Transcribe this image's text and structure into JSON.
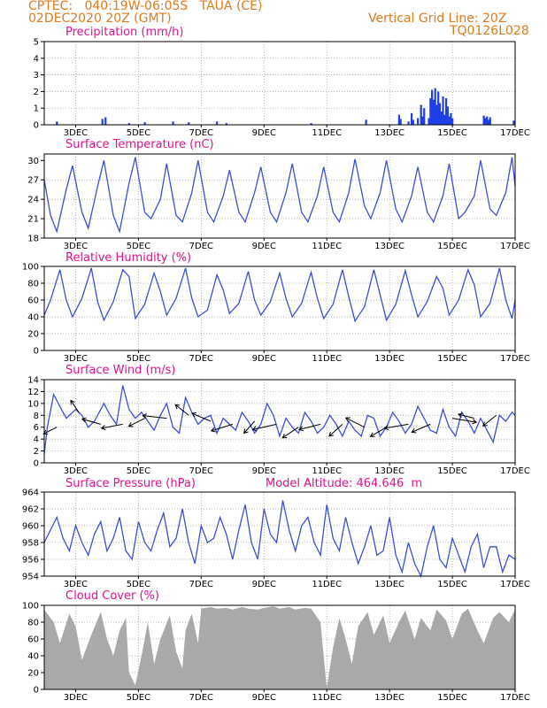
{
  "header": {
    "line1": "CPTEC:   040:19W-06:05S   TAUA (CE)",
    "line2": "02DEC2020 20Z (GMT)",
    "grid_note": "Vertical Grid Line: 20Z",
    "code": "TQ0126L028"
  },
  "x_ticks": [
    "3DEC",
    "5DEC",
    "7DEC",
    "9DEC",
    "11DEC",
    "13DEC",
    "15DEC",
    "17DEC"
  ],
  "colors": {
    "line": "#3b4fd8",
    "bar": "#1f3fe6",
    "cloud": "#a9a9a9",
    "title": "#e0128c",
    "header": "#e07a1c"
  },
  "chart_data": [
    {
      "type": "bar",
      "title": "Precipitation (mm/h)",
      "ylim": [
        0,
        5
      ],
      "yticks": [
        0,
        1,
        2,
        3,
        4,
        5
      ],
      "grid": true,
      "x_range_days": [
        2.0,
        17.0
      ],
      "series": [
        {
          "x_days": [
            2.4,
            3.85,
            3.95,
            4.7,
            5.2,
            6.1,
            6.6,
            7.5,
            7.8,
            10.5,
            12.25,
            13.3,
            13.35,
            13.6,
            13.7,
            13.75,
            13.9,
            14.0,
            14.05,
            14.1,
            14.25,
            14.3,
            14.35,
            14.4,
            14.45,
            14.5,
            14.55,
            14.6,
            14.65,
            14.7,
            14.75,
            14.8,
            14.85,
            14.9,
            14.95,
            15.0,
            16.0,
            16.05,
            16.1,
            16.15,
            16.2,
            16.95
          ],
          "values": [
            0.2,
            0.35,
            0.45,
            0.1,
            0.15,
            0.2,
            0.15,
            0.2,
            0.1,
            0.1,
            0.3,
            0.6,
            0.35,
            0.2,
            0.7,
            0.3,
            0.4,
            1.2,
            0.5,
            1.0,
            0.4,
            1.6,
            2.1,
            1.5,
            2.2,
            1.2,
            2.0,
            1.3,
            0.8,
            1.7,
            0.6,
            1.6,
            1.1,
            0.5,
            0.7,
            0.4,
            0.55,
            0.4,
            0.5,
            0.3,
            0.45,
            0.25
          ]
        }
      ]
    },
    {
      "type": "line",
      "title": "Surface Temperature (nC)",
      "ylim": [
        18,
        31
      ],
      "yticks": [
        18,
        21,
        24,
        27,
        30
      ],
      "grid": true,
      "series": [
        {
          "x_days": [
            2.0,
            2.2,
            2.4,
            2.7,
            2.9,
            3.2,
            3.4,
            3.7,
            3.9,
            4.2,
            4.4,
            4.7,
            4.9,
            5.2,
            5.4,
            5.7,
            5.9,
            6.2,
            6.4,
            6.7,
            6.9,
            7.2,
            7.4,
            7.7,
            7.9,
            8.2,
            8.4,
            8.7,
            8.9,
            9.2,
            9.4,
            9.7,
            9.9,
            10.2,
            10.4,
            10.7,
            10.9,
            11.2,
            11.4,
            11.7,
            11.9,
            12.2,
            12.4,
            12.7,
            12.9,
            13.2,
            13.4,
            13.7,
            13.9,
            14.2,
            14.4,
            14.7,
            14.9,
            15.2,
            15.4,
            15.7,
            15.9,
            16.2,
            16.4,
            16.7,
            16.9,
            17.0
          ],
          "values": [
            27.0,
            21.5,
            19.0,
            25.5,
            29.2,
            22.0,
            19.5,
            26.0,
            30.0,
            21.5,
            19.0,
            26.5,
            30.5,
            22.0,
            21.0,
            24.0,
            29.5,
            21.5,
            20.5,
            25.0,
            30.0,
            22.0,
            20.5,
            24.5,
            28.5,
            22.0,
            20.5,
            25.0,
            29.0,
            22.0,
            20.5,
            25.0,
            29.5,
            22.0,
            20.5,
            24.5,
            29.0,
            22.0,
            20.5,
            25.0,
            30.2,
            23.0,
            21.0,
            25.0,
            30.0,
            22.5,
            20.5,
            24.5,
            29.0,
            22.0,
            20.5,
            24.5,
            29.5,
            21.0,
            22.0,
            24.5,
            30.0,
            22.5,
            21.5,
            25.0,
            30.5,
            26.0
          ]
        }
      ]
    },
    {
      "type": "line",
      "title": "Relative Humidity (%)",
      "ylim": [
        0,
        100
      ],
      "yticks": [
        0,
        20,
        40,
        60,
        80,
        100
      ],
      "grid": true,
      "series": [
        {
          "x_days": [
            2.0,
            2.2,
            2.5,
            2.7,
            2.9,
            3.2,
            3.5,
            3.7,
            3.9,
            4.2,
            4.5,
            4.7,
            4.9,
            5.2,
            5.5,
            5.7,
            5.9,
            6.2,
            6.5,
            6.7,
            6.9,
            7.2,
            7.5,
            7.7,
            7.9,
            8.2,
            8.5,
            8.7,
            8.9,
            9.2,
            9.5,
            9.7,
            9.9,
            10.2,
            10.5,
            10.7,
            10.9,
            11.2,
            11.5,
            11.7,
            11.9,
            12.2,
            12.5,
            12.7,
            12.9,
            13.2,
            13.5,
            13.7,
            13.9,
            14.2,
            14.5,
            14.7,
            14.9,
            15.2,
            15.5,
            15.7,
            15.9,
            16.2,
            16.5,
            16.7,
            16.9,
            17.0
          ],
          "values": [
            42,
            60,
            96,
            60,
            40,
            62,
            98,
            58,
            36,
            58,
            96,
            88,
            38,
            55,
            92,
            70,
            42,
            62,
            98,
            62,
            40,
            48,
            90,
            72,
            44,
            56,
            94,
            60,
            42,
            58,
            92,
            62,
            40,
            56,
            93,
            62,
            38,
            55,
            96,
            64,
            35,
            52,
            96,
            66,
            36,
            55,
            95,
            66,
            40,
            58,
            88,
            74,
            42,
            60,
            96,
            78,
            40,
            56,
            98,
            60,
            38,
            60
          ]
        }
      ]
    },
    {
      "type": "line",
      "title": "Surface Wind (m/s)",
      "ylim": [
        0,
        14
      ],
      "yticks": [
        0,
        2,
        4,
        6,
        8,
        10,
        12,
        14
      ],
      "grid": true,
      "series": [
        {
          "x_days": [
            2.0,
            2.1,
            2.3,
            2.5,
            2.7,
            3.0,
            3.2,
            3.4,
            3.6,
            3.9,
            4.1,
            4.3,
            4.5,
            4.7,
            4.9,
            5.1,
            5.3,
            5.5,
            5.7,
            5.9,
            6.1,
            6.3,
            6.5,
            6.7,
            6.9,
            7.1,
            7.3,
            7.5,
            7.7,
            7.9,
            8.1,
            8.3,
            8.5,
            8.7,
            8.9,
            9.1,
            9.3,
            9.5,
            9.7,
            9.9,
            10.1,
            10.3,
            10.5,
            10.7,
            10.9,
            11.1,
            11.3,
            11.5,
            11.7,
            11.9,
            12.1,
            12.3,
            12.5,
            12.7,
            12.9,
            13.1,
            13.3,
            13.5,
            13.7,
            13.9,
            14.1,
            14.3,
            14.5,
            14.7,
            14.9,
            15.1,
            15.3,
            15.5,
            15.7,
            15.9,
            16.1,
            16.3,
            16.5,
            16.7,
            16.9,
            17.0
          ],
          "values": [
            1.5,
            6.0,
            11.5,
            9.5,
            7.5,
            9.0,
            8.0,
            6.0,
            7.0,
            10.0,
            8.0,
            6.5,
            13.0,
            9.0,
            7.5,
            8.5,
            7.0,
            5.5,
            8.0,
            10.0,
            6.0,
            5.0,
            11.0,
            8.5,
            6.5,
            7.5,
            8.0,
            5.0,
            7.5,
            6.5,
            5.5,
            8.5,
            7.0,
            5.0,
            6.5,
            10.0,
            8.0,
            4.5,
            7.5,
            6.0,
            5.0,
            8.5,
            7.0,
            5.0,
            6.0,
            8.0,
            6.5,
            4.5,
            7.0,
            5.5,
            4.5,
            8.0,
            7.5,
            4.5,
            6.0,
            8.5,
            7.0,
            5.0,
            6.5,
            9.5,
            7.5,
            5.5,
            5.0,
            9.0,
            6.0,
            4.5,
            8.5,
            7.0,
            5.0,
            7.5,
            5.5,
            3.5,
            8.0,
            7.0,
            8.5,
            8.0
          ]
        }
      ],
      "vectors": [
        {
          "x_day": 2.4,
          "speed": 6.0,
          "dx": -0.5,
          "dy": 0.5
        },
        {
          "x_day": 3.1,
          "speed": 8.5,
          "dx": -0.3,
          "dy": -0.9
        },
        {
          "x_day": 3.8,
          "speed": 6.5,
          "dx": -0.7,
          "dy": -0.4
        },
        {
          "x_day": 4.5,
          "speed": 6.5,
          "dx": -0.8,
          "dy": 0.3
        },
        {
          "x_day": 5.2,
          "speed": 7.5,
          "dx": -0.6,
          "dy": 0.6
        },
        {
          "x_day": 5.9,
          "speed": 7.5,
          "dx": -0.9,
          "dy": -0.2
        },
        {
          "x_day": 6.6,
          "speed": 8.0,
          "dx": -0.5,
          "dy": -0.8
        },
        {
          "x_day": 7.3,
          "speed": 7.0,
          "dx": -0.7,
          "dy": -0.6
        },
        {
          "x_day": 8.0,
          "speed": 6.5,
          "dx": -0.8,
          "dy": 0.5
        },
        {
          "x_day": 8.7,
          "speed": 7.0,
          "dx": -0.4,
          "dy": 0.9
        },
        {
          "x_day": 9.4,
          "speed": 6.5,
          "dx": -0.9,
          "dy": 0.4
        },
        {
          "x_day": 10.1,
          "speed": 6.0,
          "dx": -0.6,
          "dy": 0.8
        },
        {
          "x_day": 10.8,
          "speed": 6.5,
          "dx": -0.8,
          "dy": 0.4
        },
        {
          "x_day": 11.5,
          "speed": 6.5,
          "dx": -0.5,
          "dy": 0.9
        },
        {
          "x_day": 12.2,
          "speed": 6.0,
          "dx": -0.7,
          "dy": -0.7
        },
        {
          "x_day": 12.9,
          "speed": 6.0,
          "dx": -0.6,
          "dy": 0.7
        },
        {
          "x_day": 13.6,
          "speed": 6.5,
          "dx": -0.9,
          "dy": 0.3
        },
        {
          "x_day": 14.3,
          "speed": 6.5,
          "dx": -0.7,
          "dy": 0.6
        },
        {
          "x_day": 15.0,
          "speed": 7.5,
          "dx": 0.9,
          "dy": 0.3
        },
        {
          "x_day": 15.7,
          "speed": 7.5,
          "dx": -0.6,
          "dy": -0.3
        },
        {
          "x_day": 16.4,
          "speed": 8.0,
          "dx": -0.5,
          "dy": 0.8
        }
      ]
    },
    {
      "type": "line",
      "title": "Surface Pressure (hPa)",
      "annotation": "Model Altitude: 464.646  m",
      "ylim": [
        954,
        964
      ],
      "yticks": [
        954,
        956,
        958,
        960,
        962,
        964
      ],
      "grid": true,
      "series": [
        {
          "x_days": [
            2.0,
            2.2,
            2.4,
            2.6,
            2.8,
            3.0,
            3.2,
            3.4,
            3.6,
            3.8,
            4.0,
            4.2,
            4.4,
            4.6,
            4.8,
            5.0,
            5.2,
            5.4,
            5.6,
            5.8,
            6.0,
            6.2,
            6.4,
            6.6,
            6.8,
            7.0,
            7.2,
            7.4,
            7.6,
            7.8,
            8.0,
            8.2,
            8.4,
            8.6,
            8.8,
            9.0,
            9.2,
            9.4,
            9.6,
            9.8,
            10.0,
            10.2,
            10.4,
            10.6,
            10.8,
            11.0,
            11.2,
            11.4,
            11.6,
            11.8,
            12.0,
            12.2,
            12.4,
            12.6,
            12.8,
            13.0,
            13.2,
            13.4,
            13.6,
            13.8,
            14.0,
            14.2,
            14.4,
            14.6,
            14.8,
            15.0,
            15.2,
            15.4,
            15.6,
            15.8,
            16.0,
            16.2,
            16.4,
            16.6,
            16.8,
            17.0
          ],
          "values": [
            958.0,
            959.5,
            961.0,
            958.5,
            957.0,
            960.0,
            958.0,
            956.5,
            959.0,
            960.5,
            957.0,
            958.5,
            961.0,
            957.0,
            956.0,
            960.5,
            958.0,
            957.0,
            959.5,
            961.5,
            957.5,
            958.5,
            962.0,
            958.0,
            955.5,
            960.0,
            958.0,
            958.5,
            961.0,
            959.0,
            956.0,
            959.5,
            962.5,
            958.0,
            956.0,
            962.0,
            959.0,
            958.0,
            963.0,
            959.5,
            957.0,
            960.0,
            961.0,
            958.0,
            956.5,
            962.5,
            958.5,
            957.0,
            961.0,
            958.0,
            955.5,
            957.5,
            960.0,
            956.5,
            957.0,
            961.0,
            956.5,
            954.5,
            958.0,
            955.5,
            954.0,
            957.5,
            960.0,
            956.0,
            955.0,
            958.5,
            956.5,
            954.5,
            957.5,
            959.0,
            955.0,
            957.5,
            957.5,
            954.5,
            956.5,
            956.0
          ]
        }
      ]
    },
    {
      "type": "area",
      "title": "Cloud Cover (%)",
      "ylim": [
        0,
        100
      ],
      "yticks": [
        0,
        20,
        40,
        60,
        80,
        100
      ],
      "grid": true,
      "series": [
        {
          "x_days": [
            2.0,
            2.3,
            2.5,
            2.8,
            3.0,
            3.2,
            3.5,
            3.8,
            4.0,
            4.2,
            4.4,
            4.6,
            4.7,
            4.9,
            5.1,
            5.3,
            5.5,
            5.7,
            6.0,
            6.2,
            6.4,
            6.5,
            6.7,
            6.9,
            7.0,
            7.3,
            7.5,
            7.8,
            8.0,
            8.3,
            8.5,
            8.8,
            9.0,
            9.3,
            9.5,
            9.8,
            10.0,
            10.3,
            10.5,
            10.8,
            10.9,
            11.0,
            11.2,
            11.4,
            11.6,
            11.8,
            12.0,
            12.3,
            12.5,
            12.8,
            13.0,
            13.3,
            13.5,
            13.8,
            14.0,
            14.3,
            14.5,
            14.8,
            15.0,
            15.3,
            15.5,
            15.8,
            16.0,
            16.3,
            16.5,
            16.8,
            17.0
          ],
          "values": [
            95,
            80,
            55,
            90,
            75,
            35,
            65,
            92,
            60,
            40,
            70,
            85,
            20,
            5,
            40,
            80,
            30,
            60,
            88,
            45,
            25,
            70,
            90,
            55,
            96,
            98,
            96,
            97,
            95,
            98,
            96,
            95,
            97,
            99,
            96,
            98,
            95,
            97,
            96,
            80,
            40,
            2,
            50,
            85,
            60,
            30,
            75,
            92,
            65,
            88,
            55,
            80,
            94,
            60,
            85,
            70,
            95,
            82,
            60,
            90,
            96,
            70,
            55,
            85,
            92,
            80,
            95
          ]
        }
      ]
    }
  ]
}
